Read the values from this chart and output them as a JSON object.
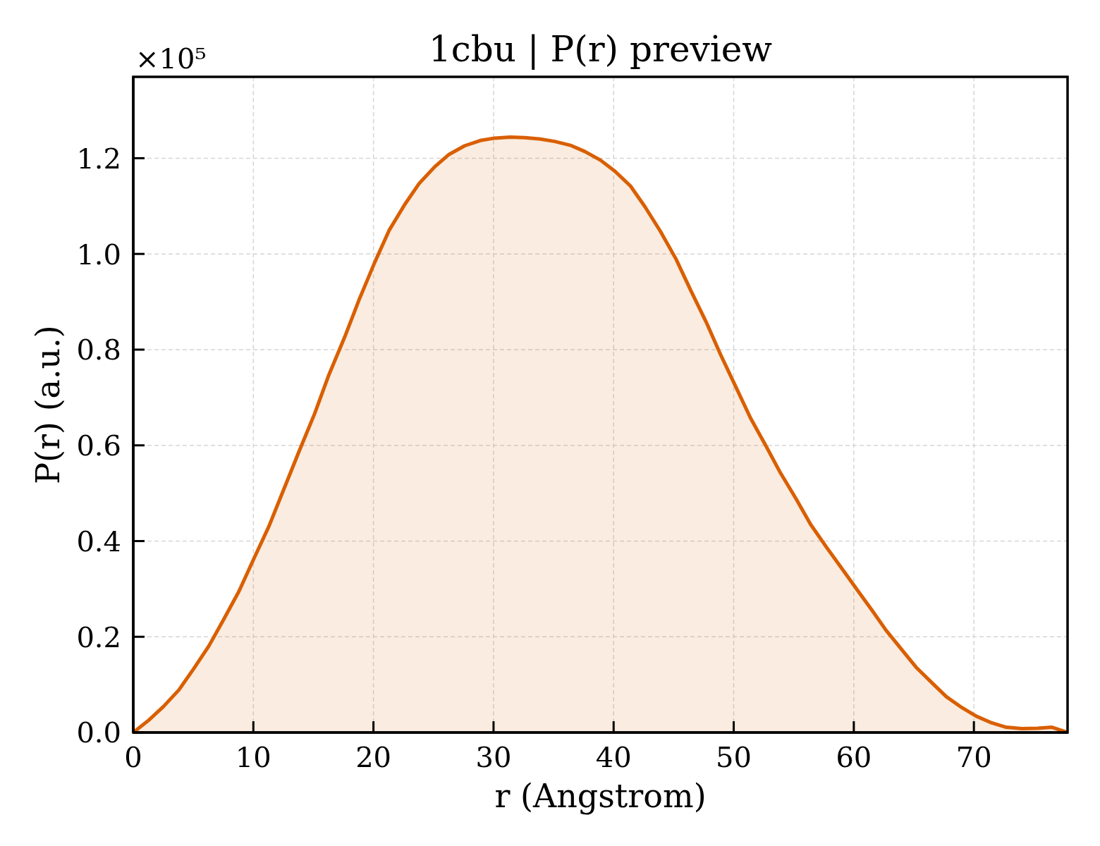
{
  "chart_data": {
    "type": "area",
    "title": "1cbu | P(r) preview",
    "xlabel": "r (Angstrom)",
    "ylabel": "P(r) (a.u.)",
    "annotations": [
      "×10⁵"
    ],
    "x": [
      0,
      1.3,
      2.5,
      3.8,
      5.0,
      6.3,
      7.5,
      8.8,
      10.0,
      11.3,
      12.5,
      13.8,
      15.1,
      16.3,
      17.6,
      18.8,
      20.1,
      21.3,
      22.6,
      23.8,
      25.1,
      26.3,
      27.6,
      28.9,
      30.1,
      31.4,
      32.6,
      33.9,
      35.1,
      36.4,
      37.6,
      38.9,
      40.1,
      41.4,
      42.6,
      43.9,
      45.2,
      46.4,
      47.7,
      48.9,
      50.2,
      51.4,
      52.7,
      53.9,
      55.2,
      56.4,
      57.7,
      59.0,
      60.2,
      61.5,
      62.7,
      64.0,
      65.2,
      66.5,
      67.7,
      69.0,
      70.2,
      71.5,
      72.7,
      74.0,
      75.3,
      76.5,
      77.8
    ],
    "values": [
      0.0,
      0.026,
      0.054,
      0.089,
      0.132,
      0.181,
      0.235,
      0.295,
      0.361,
      0.431,
      0.506,
      0.587,
      0.666,
      0.748,
      0.826,
      0.904,
      0.982,
      1.049,
      1.103,
      1.147,
      1.182,
      1.208,
      1.226,
      1.237,
      1.242,
      1.244,
      1.243,
      1.24,
      1.235,
      1.227,
      1.214,
      1.196,
      1.173,
      1.142,
      1.099,
      1.047,
      0.989,
      0.925,
      0.858,
      0.79,
      0.721,
      0.657,
      0.598,
      0.542,
      0.488,
      0.435,
      0.388,
      0.343,
      0.301,
      0.256,
      0.213,
      0.173,
      0.136,
      0.104,
      0.075,
      0.052,
      0.034,
      0.02,
      0.011,
      0.008,
      0.009,
      0.011,
      0.0
    ],
    "color": "#d95f02",
    "xlim": [
      0,
      77.8
    ],
    "ylim": [
      0,
      1.37
    ],
    "xticks": [
      0,
      10,
      20,
      30,
      40,
      50,
      60,
      70
    ],
    "yticks": [
      {
        "value": 0,
        "label": "0.0"
      },
      0.2,
      0.4,
      0.6,
      0.8,
      {
        "value": 1,
        "label": "1.0"
      },
      1.2
    ],
    "grid": true
  }
}
